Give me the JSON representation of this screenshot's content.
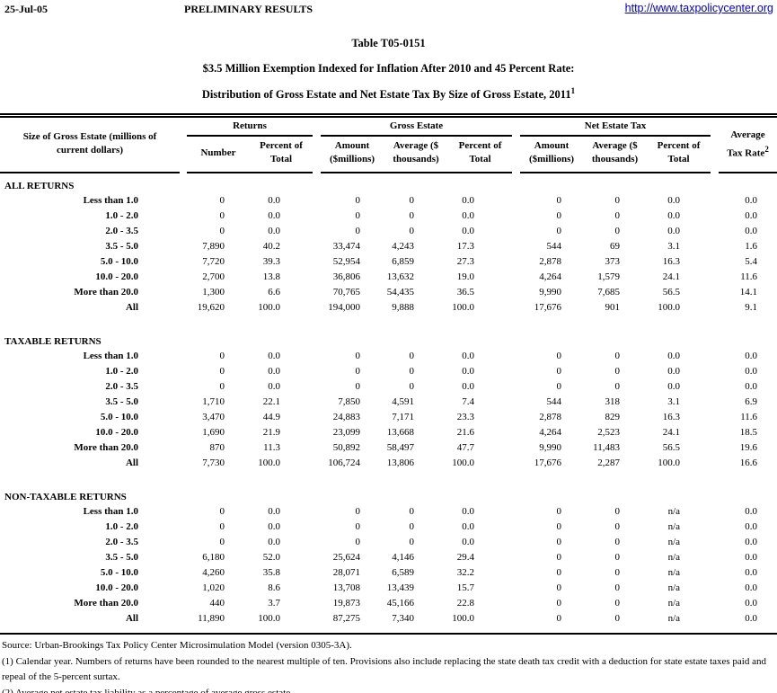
{
  "page_header": {
    "date": "25-Jul-05",
    "status": "PRELIMINARY RESULTS",
    "url": "http://www.taxpolicycenter.org"
  },
  "title": {
    "table_number": "Table T05-0151",
    "line1": "$3.5 Million Exemption Indexed for Inflation After 2010 and 45 Percent Rate:",
    "line2": "Distribution of Gross Estate and Net Estate Tax By Size of Gross Estate, 2011",
    "line2_sup": "1"
  },
  "colors": {
    "link_blue": "#0000cc",
    "text": "#000000",
    "background": "#ffffff"
  },
  "table": {
    "row_label_header": "Size of Gross Estate (millions of current dollars)",
    "groups": [
      {
        "label": "Returns",
        "columns": [
          "Number",
          "Percent of Total"
        ]
      },
      {
        "label": "Gross Estate",
        "columns": [
          "Amount ($millions)",
          "Average ($ thousands)",
          "Percent of Total"
        ]
      },
      {
        "label": "Net Estate Tax",
        "columns": [
          "Amount ($millions)",
          "Average ($ thousands)",
          "Percent of Total"
        ]
      }
    ],
    "rate_header": "Average Tax Rate",
    "rate_header_sup": "2",
    "sections": [
      {
        "name": "ALL RETURNS",
        "rows": [
          {
            "label": "Less than 1.0",
            "values": [
              "0",
              "0.0",
              "0",
              "0",
              "0.0",
              "0",
              "0",
              "0.0",
              "0.0"
            ]
          },
          {
            "label": "1.0 - 2.0",
            "values": [
              "0",
              "0.0",
              "0",
              "0",
              "0.0",
              "0",
              "0",
              "0.0",
              "0.0"
            ]
          },
          {
            "label": "2.0 - 3.5",
            "values": [
              "0",
              "0.0",
              "0",
              "0",
              "0.0",
              "0",
              "0",
              "0.0",
              "0.0"
            ]
          },
          {
            "label": "3.5 - 5.0",
            "values": [
              "7,890",
              "40.2",
              "33,474",
              "4,243",
              "17.3",
              "544",
              "69",
              "3.1",
              "1.6"
            ]
          },
          {
            "label": "5.0 - 10.0",
            "values": [
              "7,720",
              "39.3",
              "52,954",
              "6,859",
              "27.3",
              "2,878",
              "373",
              "16.3",
              "5.4"
            ]
          },
          {
            "label": "10.0 - 20.0",
            "values": [
              "2,700",
              "13.8",
              "36,806",
              "13,632",
              "19.0",
              "4,264",
              "1,579",
              "24.1",
              "11.6"
            ]
          },
          {
            "label": "More than 20.0",
            "values": [
              "1,300",
              "6.6",
              "70,765",
              "54,435",
              "36.5",
              "9,990",
              "7,685",
              "56.5",
              "14.1"
            ]
          },
          {
            "label": "All",
            "values": [
              "19,620",
              "100.0",
              "194,000",
              "9,888",
              "100.0",
              "17,676",
              "901",
              "100.0",
              "9.1"
            ]
          }
        ]
      },
      {
        "name": "TAXABLE RETURNS",
        "rows": [
          {
            "label": "Less than 1.0",
            "values": [
              "0",
              "0.0",
              "0",
              "0",
              "0.0",
              "0",
              "0",
              "0.0",
              "0.0"
            ]
          },
          {
            "label": "1.0 - 2.0",
            "values": [
              "0",
              "0.0",
              "0",
              "0",
              "0.0",
              "0",
              "0",
              "0.0",
              "0.0"
            ]
          },
          {
            "label": "2.0 - 3.5",
            "values": [
              "0",
              "0.0",
              "0",
              "0",
              "0.0",
              "0",
              "0",
              "0.0",
              "0.0"
            ]
          },
          {
            "label": "3.5 - 5.0",
            "values": [
              "1,710",
              "22.1",
              "7,850",
              "4,591",
              "7.4",
              "544",
              "318",
              "3.1",
              "6.9"
            ]
          },
          {
            "label": "5.0 - 10.0",
            "values": [
              "3,470",
              "44.9",
              "24,883",
              "7,171",
              "23.3",
              "2,878",
              "829",
              "16.3",
              "11.6"
            ]
          },
          {
            "label": "10.0 - 20.0",
            "values": [
              "1,690",
              "21.9",
              "23,099",
              "13,668",
              "21.6",
              "4,264",
              "2,523",
              "24.1",
              "18.5"
            ]
          },
          {
            "label": "More than 20.0",
            "values": [
              "870",
              "11.3",
              "50,892",
              "58,497",
              "47.7",
              "9,990",
              "11,483",
              "56.5",
              "19.6"
            ]
          },
          {
            "label": "All",
            "values": [
              "7,730",
              "100.0",
              "106,724",
              "13,806",
              "100.0",
              "17,676",
              "2,287",
              "100.0",
              "16.6"
            ]
          }
        ]
      },
      {
        "name": "NON-TAXABLE RETURNS",
        "rows": [
          {
            "label": "Less than 1.0",
            "values": [
              "0",
              "0.0",
              "0",
              "0",
              "0.0",
              "0",
              "0",
              "n/a",
              "0.0"
            ]
          },
          {
            "label": "1.0 - 2.0",
            "values": [
              "0",
              "0.0",
              "0",
              "0",
              "0.0",
              "0",
              "0",
              "n/a",
              "0.0"
            ]
          },
          {
            "label": "2.0 - 3.5",
            "values": [
              "0",
              "0.0",
              "0",
              "0",
              "0.0",
              "0",
              "0",
              "n/a",
              "0.0"
            ]
          },
          {
            "label": "3.5 - 5.0",
            "values": [
              "6,180",
              "52.0",
              "25,624",
              "4,146",
              "29.4",
              "0",
              "0",
              "n/a",
              "0.0"
            ]
          },
          {
            "label": "5.0 - 10.0",
            "values": [
              "4,260",
              "35.8",
              "28,071",
              "6,589",
              "32.2",
              "0",
              "0",
              "n/a",
              "0.0"
            ]
          },
          {
            "label": "10.0 - 20.0",
            "values": [
              "1,020",
              "8.6",
              "13,708",
              "13,439",
              "15.7",
              "0",
              "0",
              "n/a",
              "0.0"
            ]
          },
          {
            "label": "More than 20.0",
            "values": [
              "440",
              "3.7",
              "19,873",
              "45,166",
              "22.8",
              "0",
              "0",
              "n/a",
              "0.0"
            ]
          },
          {
            "label": "All",
            "values": [
              "11,890",
              "100.0",
              "87,275",
              "7,340",
              "100.0",
              "0",
              "0",
              "n/a",
              "0.0"
            ]
          }
        ]
      }
    ]
  },
  "footnotes": [
    "Source: Urban-Brookings Tax Policy Center Microsimulation Model (version 0305-3A).",
    "(1) Calendar year. Numbers of returns have been rounded to the nearest multiple of ten. Provisions also include replacing the state death tax credit with a deduction for state estate taxes paid and repeal of the 5-percent surtax.",
    "(2) Average net estate tax liability as a percentage of average gross estate."
  ]
}
